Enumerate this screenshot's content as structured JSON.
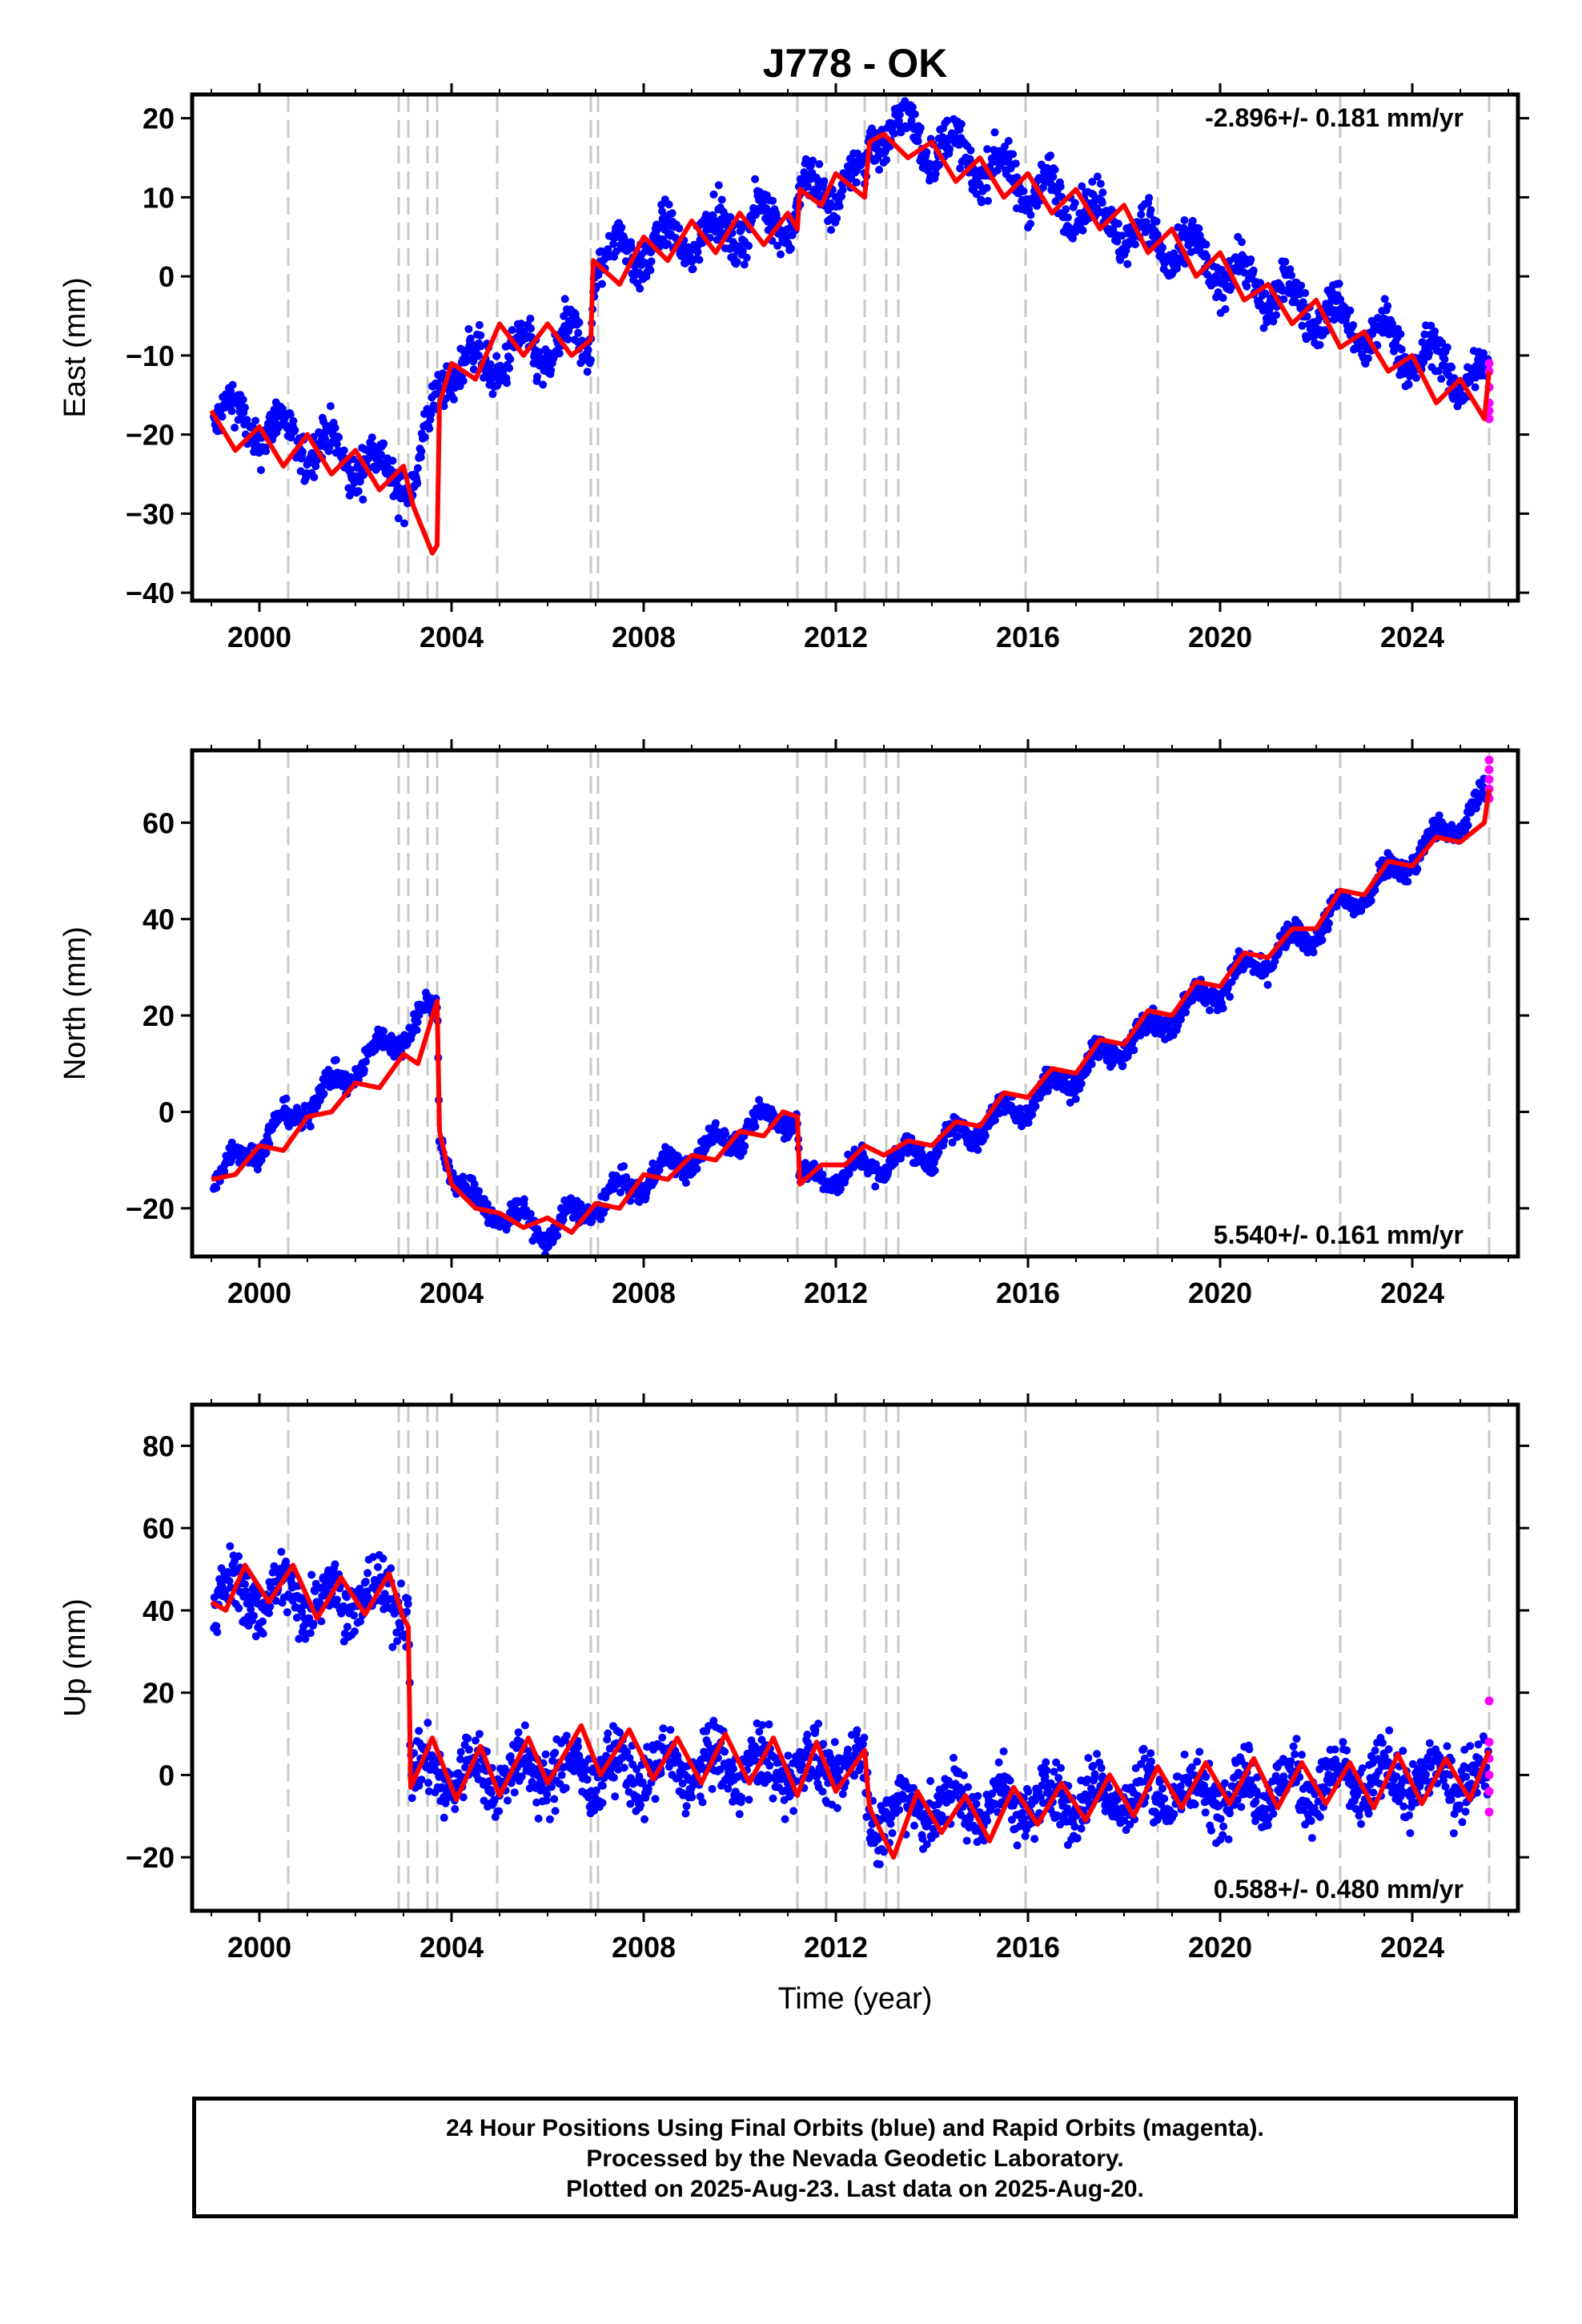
{
  "chart_data": [
    {
      "type": "scatter",
      "title": "J778 - OK",
      "ylabel": "East (mm)",
      "xlabel": "",
      "xlim": [
        1998.6,
        2026.2
      ],
      "ylim": [
        -41,
        23
      ],
      "xticks": [
        2000,
        2004,
        2008,
        2012,
        2016,
        2020,
        2024
      ],
      "yticks": [
        -40,
        -30,
        -20,
        -10,
        0,
        10,
        20
      ],
      "grid": false,
      "rate_label": "-2.896+/- 0.181 mm/yr",
      "rate_position": "top-right",
      "series": [
        {
          "role": "final-orbits",
          "color": "#0000ff",
          "scatter": 2.5,
          "trend": [
            [
              1999.0,
              -17
            ],
            [
              2003.3,
              -26
            ],
            [
              2003.8,
              -12
            ],
            [
              2006.9,
              -8
            ],
            [
              2006.95,
              2
            ],
            [
              2011.2,
              8
            ],
            [
              2011.25,
              10
            ],
            [
              2012.6,
              12
            ],
            [
              2012.7,
              18
            ],
            [
              2013.2,
              19
            ],
            [
              2025.6,
              -14
            ]
          ],
          "seasonal_amplitude": 2.5,
          "magenta_cluster": {
            "x": 2025.6,
            "values": [
              -11,
              -12,
              -14,
              -16,
              -17,
              -18
            ]
          }
        },
        {
          "role": "model-fit",
          "color": "#ff0000",
          "points": [
            [
              1999.0,
              -17
            ],
            [
              1999.5,
              -22
            ],
            [
              2000.0,
              -19
            ],
            [
              2000.5,
              -24
            ],
            [
              2001.0,
              -20
            ],
            [
              2001.5,
              -25
            ],
            [
              2002.0,
              -22
            ],
            [
              2002.5,
              -27
            ],
            [
              2003.0,
              -24
            ],
            [
              2003.2,
              -29
            ],
            [
              2003.6,
              -35
            ],
            [
              2003.7,
              -34
            ],
            [
              2003.75,
              -16
            ],
            [
              2004.0,
              -11
            ],
            [
              2004.5,
              -13
            ],
            [
              2005.0,
              -6
            ],
            [
              2005.5,
              -10
            ],
            [
              2006.0,
              -6
            ],
            [
              2006.5,
              -10
            ],
            [
              2006.9,
              -8
            ],
            [
              2006.95,
              2
            ],
            [
              2007.5,
              -1
            ],
            [
              2008.0,
              5
            ],
            [
              2008.5,
              2
            ],
            [
              2009.0,
              7
            ],
            [
              2009.5,
              3
            ],
            [
              2010.0,
              8
            ],
            [
              2010.5,
              4
            ],
            [
              2011.0,
              8
            ],
            [
              2011.2,
              6
            ],
            [
              2011.25,
              11
            ],
            [
              2011.7,
              9
            ],
            [
              2012.0,
              13
            ],
            [
              2012.6,
              10
            ],
            [
              2012.7,
              17
            ],
            [
              2013.0,
              18
            ],
            [
              2013.5,
              15
            ],
            [
              2014.0,
              17
            ],
            [
              2014.5,
              12
            ],
            [
              2015.0,
              15
            ],
            [
              2015.5,
              10
            ],
            [
              2016.0,
              13
            ],
            [
              2016.5,
              8
            ],
            [
              2017.0,
              11
            ],
            [
              2017.5,
              6
            ],
            [
              2018.0,
              9
            ],
            [
              2018.5,
              3
            ],
            [
              2019.0,
              6
            ],
            [
              2019.5,
              0
            ],
            [
              2020.0,
              3
            ],
            [
              2020.5,
              -3
            ],
            [
              2021.0,
              -1
            ],
            [
              2021.5,
              -6
            ],
            [
              2022.0,
              -3
            ],
            [
              2022.5,
              -9
            ],
            [
              2023.0,
              -7
            ],
            [
              2023.5,
              -12
            ],
            [
              2024.0,
              -10
            ],
            [
              2024.5,
              -16
            ],
            [
              2025.0,
              -13
            ],
            [
              2025.5,
              -18
            ],
            [
              2025.6,
              -12
            ]
          ]
        }
      ],
      "event_lines": [
        2000.6,
        2002.9,
        2003.1,
        2003.5,
        2003.7,
        2004.95,
        2006.9,
        2007.05,
        2011.2,
        2011.8,
        2012.6,
        2013.05,
        2013.3,
        2015.95,
        2018.7,
        2022.5,
        2025.6
      ]
    },
    {
      "type": "scatter",
      "ylabel": "North (mm)",
      "xlabel": "",
      "xlim": [
        1998.6,
        2026.2
      ],
      "ylim": [
        -30,
        75
      ],
      "xticks": [
        2000,
        2004,
        2008,
        2012,
        2016,
        2020,
        2024
      ],
      "yticks": [
        -20,
        0,
        20,
        40,
        60
      ],
      "grid": false,
      "rate_label": "5.540+/- 0.161 mm/yr",
      "rate_position": "bottom-right",
      "series": [
        {
          "role": "final-orbits",
          "color": "#0000ff",
          "scatter": 2.2,
          "trend": [
            [
              1999.0,
              -14
            ],
            [
              2003.7,
              22
            ],
            [
              2003.75,
              -5
            ],
            [
              2004.3,
              -18
            ],
            [
              2006.0,
              -25
            ],
            [
              2007.0,
              -19
            ],
            [
              2010.9,
              0
            ],
            [
              2011.2,
              -1
            ],
            [
              2011.25,
              -15
            ],
            [
              2014.0,
              -8
            ],
            [
              2016.0,
              2
            ],
            [
              2019.0,
              20
            ],
            [
              2022.0,
              38
            ],
            [
              2025.6,
              65
            ]
          ],
          "seasonal_amplitude": 2.5,
          "magenta_cluster": {
            "x": 2025.6,
            "values": [
              65,
              67,
              69,
              71,
              73
            ]
          }
        },
        {
          "role": "model-fit",
          "color": "#ff0000",
          "points": [
            [
              1999.0,
              -14
            ],
            [
              1999.5,
              -13
            ],
            [
              2000.0,
              -7
            ],
            [
              2000.5,
              -8
            ],
            [
              2001.0,
              -1
            ],
            [
              2001.5,
              0
            ],
            [
              2002.0,
              6
            ],
            [
              2002.5,
              5
            ],
            [
              2003.0,
              12
            ],
            [
              2003.3,
              10
            ],
            [
              2003.7,
              23
            ],
            [
              2003.75,
              -4
            ],
            [
              2004.0,
              -15
            ],
            [
              2004.5,
              -20
            ],
            [
              2005.0,
              -21
            ],
            [
              2005.5,
              -24
            ],
            [
              2006.0,
              -22
            ],
            [
              2006.5,
              -25
            ],
            [
              2007.0,
              -19
            ],
            [
              2007.5,
              -20
            ],
            [
              2008.0,
              -13
            ],
            [
              2008.5,
              -14
            ],
            [
              2009.0,
              -9
            ],
            [
              2009.5,
              -10
            ],
            [
              2010.0,
              -4
            ],
            [
              2010.5,
              -5
            ],
            [
              2010.9,
              0
            ],
            [
              2011.2,
              -1
            ],
            [
              2011.25,
              -15
            ],
            [
              2011.7,
              -11
            ],
            [
              2012.2,
              -11
            ],
            [
              2012.6,
              -7
            ],
            [
              2013.0,
              -9
            ],
            [
              2013.5,
              -6
            ],
            [
              2014.0,
              -7
            ],
            [
              2014.5,
              -2
            ],
            [
              2015.0,
              -3
            ],
            [
              2015.5,
              4
            ],
            [
              2016.0,
              3
            ],
            [
              2016.5,
              9
            ],
            [
              2017.0,
              8
            ],
            [
              2017.5,
              15
            ],
            [
              2018.0,
              14
            ],
            [
              2018.5,
              21
            ],
            [
              2019.0,
              20
            ],
            [
              2019.5,
              27
            ],
            [
              2020.0,
              26
            ],
            [
              2020.5,
              33
            ],
            [
              2021.0,
              32
            ],
            [
              2021.5,
              38
            ],
            [
              2022.0,
              38
            ],
            [
              2022.5,
              46
            ],
            [
              2023.0,
              45
            ],
            [
              2023.5,
              52
            ],
            [
              2024.0,
              51
            ],
            [
              2024.5,
              57
            ],
            [
              2025.0,
              56
            ],
            [
              2025.5,
              60
            ],
            [
              2025.6,
              67
            ]
          ]
        }
      ],
      "event_lines": [
        2000.6,
        2002.9,
        2003.1,
        2003.5,
        2003.7,
        2004.95,
        2006.9,
        2007.05,
        2011.2,
        2011.8,
        2012.6,
        2013.05,
        2013.3,
        2015.95,
        2018.7,
        2022.5,
        2025.6
      ]
    },
    {
      "type": "scatter",
      "ylabel": "Up (mm)",
      "xlabel": "Time (year)",
      "xlim": [
        1998.6,
        2026.2
      ],
      "ylim": [
        -33,
        90
      ],
      "xticks": [
        2000,
        2004,
        2008,
        2012,
        2016,
        2020,
        2024
      ],
      "yticks": [
        -20,
        0,
        20,
        40,
        60,
        80
      ],
      "grid": false,
      "rate_label": "0.588+/- 0.480 mm/yr",
      "rate_position": "bottom-right",
      "series": [
        {
          "role": "final-orbits",
          "color": "#0000ff",
          "scatter": 7,
          "trend": [
            [
              1999.0,
              44
            ],
            [
              2003.1,
              43
            ],
            [
              2003.15,
              0
            ],
            [
              2012.6,
              2
            ],
            [
              2012.7,
              -10
            ],
            [
              2013.5,
              -8
            ],
            [
              2025.6,
              0
            ]
          ],
          "seasonal_amplitude": 4,
          "magenta_cluster": {
            "x": 2025.6,
            "values": [
              18,
              8,
              4,
              0,
              -4,
              -9
            ]
          }
        },
        {
          "role": "model-fit",
          "color": "#ff0000",
          "points": [
            [
              1999.0,
              42
            ],
            [
              1999.3,
              40
            ],
            [
              1999.7,
              51
            ],
            [
              2000.2,
              42
            ],
            [
              2000.7,
              51
            ],
            [
              2001.2,
              38
            ],
            [
              2001.7,
              48
            ],
            [
              2002.2,
              39
            ],
            [
              2002.7,
              49
            ],
            [
              2003.0,
              38
            ],
            [
              2003.1,
              36
            ],
            [
              2003.15,
              -3
            ],
            [
              2003.6,
              9
            ],
            [
              2004.1,
              -6
            ],
            [
              2004.6,
              7
            ],
            [
              2005.0,
              -5
            ],
            [
              2005.6,
              9
            ],
            [
              2006.0,
              -2
            ],
            [
              2006.7,
              12
            ],
            [
              2007.1,
              0
            ],
            [
              2007.7,
              11
            ],
            [
              2008.2,
              -1
            ],
            [
              2008.7,
              9
            ],
            [
              2009.2,
              -2
            ],
            [
              2009.7,
              10
            ],
            [
              2010.2,
              -2
            ],
            [
              2010.7,
              9
            ],
            [
              2011.2,
              -5
            ],
            [
              2011.6,
              8
            ],
            [
              2012.0,
              -4
            ],
            [
              2012.6,
              6
            ],
            [
              2012.7,
              -8
            ],
            [
              2013.2,
              -20
            ],
            [
              2013.7,
              -4
            ],
            [
              2014.2,
              -14
            ],
            [
              2014.7,
              -5
            ],
            [
              2015.2,
              -16
            ],
            [
              2015.7,
              -3
            ],
            [
              2016.2,
              -12
            ],
            [
              2016.7,
              -2
            ],
            [
              2017.2,
              -11
            ],
            [
              2017.7,
              0
            ],
            [
              2018.2,
              -10
            ],
            [
              2018.7,
              2
            ],
            [
              2019.2,
              -8
            ],
            [
              2019.7,
              3
            ],
            [
              2020.2,
              -7
            ],
            [
              2020.7,
              4
            ],
            [
              2021.2,
              -8
            ],
            [
              2021.7,
              3
            ],
            [
              2022.2,
              -7
            ],
            [
              2022.7,
              3
            ],
            [
              2023.2,
              -8
            ],
            [
              2023.7,
              5
            ],
            [
              2024.2,
              -7
            ],
            [
              2024.7,
              4
            ],
            [
              2025.2,
              -6
            ],
            [
              2025.6,
              6
            ]
          ]
        }
      ],
      "event_lines": [
        2000.6,
        2002.9,
        2003.1,
        2003.5,
        2003.7,
        2004.95,
        2006.9,
        2007.05,
        2011.2,
        2011.8,
        2012.6,
        2013.05,
        2013.3,
        2015.95,
        2018.7,
        2022.5,
        2025.6
      ]
    }
  ],
  "colors": {
    "final_orbits": "#0000ff",
    "rapid_orbits": "#ff00ff",
    "model": "#ff0000",
    "event_line": "#c8c8c8"
  },
  "caption": {
    "line1": "24 Hour Positions Using Final Orbits (blue) and Rapid Orbits (magenta).",
    "line2": "Processed by the Nevada Geodetic Laboratory.",
    "line3": "Plotted on 2025-Aug-23. Last data on 2025-Aug-20."
  }
}
